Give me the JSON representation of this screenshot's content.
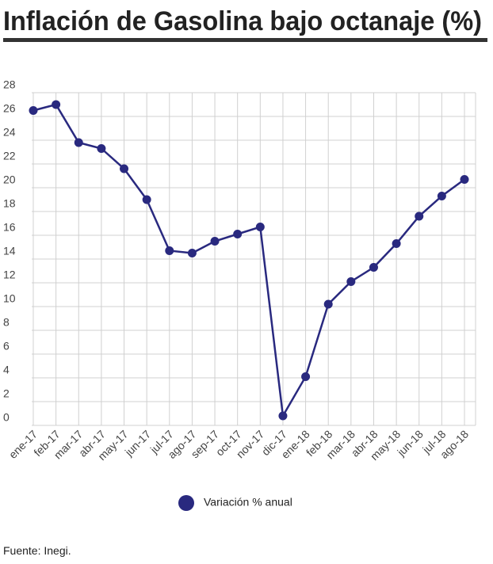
{
  "chart_data": {
    "type": "line",
    "title": "Inflación de Gasolina bajo octanaje (%)",
    "categories": [
      "ene-17",
      "feb-17",
      "mar-17",
      "abr-17",
      "may-17",
      "jun-17",
      "jul-17",
      "ago-17",
      "sep-17",
      "oct-17",
      "nov-17",
      "dic-17",
      "ene-18",
      "feb-18",
      "mar-18",
      "abr-18",
      "may-18",
      "jun-18",
      "jul-18",
      "ago-18"
    ],
    "series": [
      {
        "name": "Variación % anual",
        "color": "#29297f",
        "values": [
          26.5,
          27.0,
          23.8,
          23.3,
          21.6,
          19.0,
          14.7,
          14.5,
          15.5,
          16.1,
          16.7,
          0.8,
          4.1,
          10.2,
          12.1,
          13.3,
          15.3,
          17.6,
          19.3,
          20.7
        ]
      }
    ],
    "ylim": [
      0,
      28
    ],
    "yticks": [
      0,
      2,
      4,
      6,
      8,
      10,
      12,
      14,
      16,
      18,
      20,
      22,
      24,
      26,
      28
    ],
    "grid": true,
    "source": "Fuente: Inegi."
  }
}
